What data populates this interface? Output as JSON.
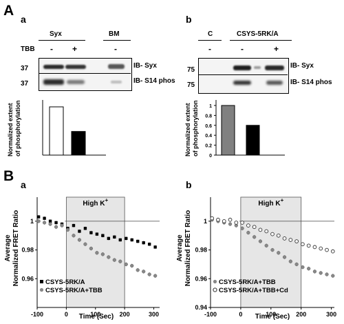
{
  "panelA": {
    "letter": "A",
    "a": {
      "letter": "a",
      "groups": [
        "Syx",
        "BM"
      ],
      "tbb_label": "TBB",
      "signs": [
        "-",
        "+",
        "-"
      ],
      "mw": [
        "37",
        "37"
      ],
      "ib": [
        "IB- Syx",
        "IB- S14 phos"
      ],
      "ylabel": [
        "Normalized extent",
        "of phosphorylation"
      ]
    },
    "b": {
      "letter": "b",
      "groups": [
        "C",
        "CSYS-5RK/A"
      ],
      "signs": [
        "-",
        "-",
        "+"
      ],
      "mw": [
        "75",
        "75"
      ],
      "ib": [
        "IB- Syx",
        "IB- S14 phos"
      ],
      "ylabel": [
        "Normalized extent",
        "of phosphorylation"
      ]
    }
  },
  "panelB": {
    "letter": "B",
    "a": {
      "letter": "a",
      "legend": [
        "CSYS-5RK/A",
        "CSYS-5RK/A+TBB"
      ]
    },
    "b": {
      "letter": "b",
      "legend": [
        "CSYS-5RK/A+TBB",
        "CSYS-5RK/A+TBB+Cd"
      ]
    },
    "highk_label": "High K",
    "highk_sup": "+",
    "ylabel": [
      "Average",
      "Normalized FRET Ratio"
    ],
    "xlabel": "Time (Sec)"
  },
  "chart_data": [
    {
      "type": "bar",
      "panel": "Aa",
      "categories": [
        "-TBB",
        "+TBB"
      ],
      "values": [
        1.0,
        0.49
      ],
      "ylabel": "Normalized extent of phosphorylation",
      "ylim": [
        0,
        1
      ]
    },
    {
      "type": "bar",
      "panel": "Ab",
      "categories": [
        "-TBB",
        "+TBB"
      ],
      "values": [
        1.0,
        0.6
      ],
      "ylabel": "Normalized extent of phosphorylation",
      "ylim": [
        0,
        1
      ],
      "yticks": [
        "0",
        "0.2",
        "0.4",
        "0.6",
        "0.8",
        "1"
      ]
    },
    {
      "type": "scatter",
      "panel": "Ba",
      "xlabel": "Time (Sec)",
      "ylabel": "Average Normalized FRET Ratio",
      "xlim": [
        -100,
        320
      ],
      "ylim": [
        0.94,
        1.01
      ],
      "xticks": [
        "-100",
        "0",
        "100",
        "200",
        "300"
      ],
      "yticks": [
        "0.96",
        "0.98",
        "1"
      ],
      "shaded_range": [
        0,
        200
      ],
      "reference_line": 1.0,
      "series": [
        {
          "name": "CSYS-5RK/A",
          "marker": "filled-square",
          "points": [
            [
              -95,
              1.003
            ],
            [
              -75,
              1.002
            ],
            [
              -55,
              1.0
            ],
            [
              -35,
              0.999
            ],
            [
              -15,
              0.998
            ],
            [
              5,
              0.995
            ],
            [
              25,
              0.997
            ],
            [
              45,
              0.993
            ],
            [
              65,
              0.995
            ],
            [
              85,
              0.992
            ],
            [
              105,
              0.991
            ],
            [
              125,
              0.99
            ],
            [
              145,
              0.988
            ],
            [
              165,
              0.989
            ],
            [
              185,
              0.987
            ],
            [
              205,
              0.988
            ],
            [
              225,
              0.987
            ],
            [
              245,
              0.986
            ],
            [
              265,
              0.985
            ],
            [
              285,
              0.984
            ],
            [
              305,
              0.982
            ]
          ]
        },
        {
          "name": "CSYS-5RK/A+TBB",
          "marker": "filled-circle",
          "points": [
            [
              -95,
              1.0
            ],
            [
              -75,
              0.999
            ],
            [
              -55,
              0.998
            ],
            [
              -35,
              0.996
            ],
            [
              -15,
              0.997
            ],
            [
              5,
              0.994
            ],
            [
              25,
              0.99
            ],
            [
              45,
              0.987
            ],
            [
              65,
              0.984
            ],
            [
              85,
              0.981
            ],
            [
              105,
              0.978
            ],
            [
              125,
              0.977
            ],
            [
              145,
              0.975
            ],
            [
              165,
              0.973
            ],
            [
              185,
              0.972
            ],
            [
              205,
              0.97
            ],
            [
              225,
              0.969
            ],
            [
              245,
              0.966
            ],
            [
              265,
              0.965
            ],
            [
              285,
              0.963
            ],
            [
              305,
              0.962
            ]
          ]
        }
      ]
    },
    {
      "type": "scatter",
      "panel": "Bb",
      "xlabel": "Time (Sec)",
      "ylabel": "Average Normalized FRET Ratio",
      "xlim": [
        -100,
        310
      ],
      "ylim": [
        0.94,
        1.01
      ],
      "xticks": [
        "-100",
        "0",
        "100",
        "200",
        "300"
      ],
      "yticks": [
        "0.94",
        "0.96",
        "0.98",
        "1"
      ],
      "shaded_range": [
        0,
        200
      ],
      "reference_line": 1.0,
      "series": [
        {
          "name": "CSYS-5RK/A+TBB",
          "marker": "filled-circle",
          "points": [
            [
              -95,
              1.001
            ],
            [
              -75,
              1.0
            ],
            [
              -55,
              0.999
            ],
            [
              -35,
              0.998
            ],
            [
              -15,
              0.997
            ],
            [
              5,
              0.995
            ],
            [
              25,
              0.992
            ],
            [
              45,
              0.989
            ],
            [
              65,
              0.986
            ],
            [
              85,
              0.983
            ],
            [
              105,
              0.98
            ],
            [
              125,
              0.978
            ],
            [
              145,
              0.975
            ],
            [
              165,
              0.972
            ],
            [
              185,
              0.97
            ],
            [
              205,
              0.968
            ],
            [
              225,
              0.967
            ],
            [
              245,
              0.965
            ],
            [
              265,
              0.964
            ],
            [
              285,
              0.963
            ],
            [
              305,
              0.962
            ]
          ]
        },
        {
          "name": "CSYS-5RK/A+TBB+Cd",
          "marker": "open-circle",
          "points": [
            [
              -95,
              1.002
            ],
            [
              -75,
              1.001
            ],
            [
              -55,
              1.0
            ],
            [
              -35,
              1.001
            ],
            [
              -15,
              0.999
            ],
            [
              5,
              0.999
            ],
            [
              25,
              0.997
            ],
            [
              45,
              0.996
            ],
            [
              65,
              0.994
            ],
            [
              85,
              0.993
            ],
            [
              105,
              0.991
            ],
            [
              125,
              0.99
            ],
            [
              145,
              0.988
            ],
            [
              165,
              0.987
            ],
            [
              185,
              0.986
            ],
            [
              205,
              0.984
            ],
            [
              225,
              0.983
            ],
            [
              245,
              0.982
            ],
            [
              265,
              0.981
            ],
            [
              285,
              0.98
            ],
            [
              305,
              0.979
            ]
          ]
        }
      ]
    }
  ]
}
